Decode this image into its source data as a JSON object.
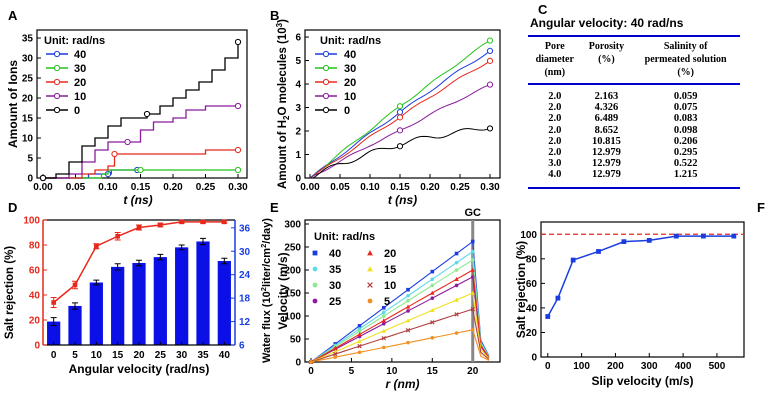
{
  "panels": {
    "A": "A",
    "B": "B",
    "C": "C",
    "D": "D",
    "E": "E",
    "F": "F"
  },
  "chart_data": [
    {
      "panel": "A",
      "type": "line",
      "title": "",
      "xlabel": "t (ns)",
      "ylabel": "Amount of Ions",
      "xlim": [
        0,
        0.3
      ],
      "ylim": [
        0,
        37
      ],
      "xticks": [
        "0.00",
        "0.05",
        "0.10",
        "0.15",
        "0.20",
        "0.25",
        "0.30"
      ],
      "yticks": [
        "0",
        "5",
        "10",
        "15",
        "20",
        "25",
        "30",
        "35"
      ],
      "legend_title": "Unit: rad/ns",
      "legend_position": "top-left",
      "series": [
        {
          "name": "40",
          "color": "#1a3de0",
          "x": [
            0,
            0.06,
            0.07,
            0.1,
            0.105,
            0.145
          ],
          "y": [
            0,
            0,
            1,
            1,
            2,
            2
          ]
        },
        {
          "name": "30",
          "color": "#22c41a",
          "x": [
            0,
            0.06,
            0.09,
            0.1,
            0.15,
            0.2,
            0.25,
            0.3
          ],
          "y": [
            0,
            0,
            1,
            2,
            2,
            2,
            2,
            2
          ]
        },
        {
          "name": "20",
          "color": "#e8281c",
          "x": [
            0,
            0.05,
            0.06,
            0.08,
            0.1,
            0.11,
            0.14,
            0.2,
            0.25,
            0.3
          ],
          "y": [
            0,
            0,
            1,
            2,
            3,
            6,
            6,
            6,
            7,
            7
          ]
        },
        {
          "name": "10",
          "color": "#8b1a9c",
          "x": [
            0,
            0.03,
            0.04,
            0.06,
            0.08,
            0.1,
            0.13,
            0.15,
            0.17,
            0.2,
            0.22,
            0.25,
            0.3
          ],
          "y": [
            0,
            0,
            1,
            4,
            7,
            9,
            9,
            12,
            14,
            15,
            17,
            18,
            18
          ]
        },
        {
          "name": "0",
          "color": "#000000",
          "x": [
            0,
            0.02,
            0.04,
            0.06,
            0.08,
            0.1,
            0.12,
            0.14,
            0.16,
            0.18,
            0.2,
            0.22,
            0.24,
            0.26,
            0.28,
            0.3
          ],
          "y": [
            0,
            1,
            4,
            8,
            10,
            13,
            15,
            15,
            16,
            18,
            20,
            22,
            24,
            27,
            30,
            34
          ]
        }
      ]
    },
    {
      "panel": "B",
      "type": "line",
      "xlabel": "t (ns)",
      "ylabel": "Amount of H2O molecules (10^3)",
      "ylabel_parts": {
        "pre": "Amount of H",
        "sub": "2",
        "mid": "O molecules (10",
        "sup": "3",
        "post": ")"
      },
      "xlim": [
        0,
        0.3
      ],
      "ylim": [
        0,
        6.3
      ],
      "xticks": [
        "0.00",
        "0.05",
        "0.10",
        "0.15",
        "0.20",
        "0.25",
        "0.30"
      ],
      "yticks": [
        "0",
        "1",
        "2",
        "3",
        "4",
        "5",
        "6"
      ],
      "legend_title": "Unit: rad/ns",
      "legend_position": "top-left",
      "series": [
        {
          "name": "40",
          "color": "#1a3de0",
          "x": [
            0,
            0.05,
            0.1,
            0.15,
            0.2,
            0.25,
            0.3
          ],
          "y": [
            0,
            0.95,
            1.9,
            2.8,
            3.7,
            4.6,
            5.4
          ]
        },
        {
          "name": "30",
          "color": "#22c41a",
          "x": [
            0,
            0.05,
            0.1,
            0.15,
            0.2,
            0.25,
            0.3
          ],
          "y": [
            0,
            1.05,
            2.05,
            3.05,
            4.0,
            4.95,
            5.85
          ]
        },
        {
          "name": "20",
          "color": "#e8281c",
          "x": [
            0,
            0.05,
            0.1,
            0.15,
            0.2,
            0.25,
            0.3
          ],
          "y": [
            0,
            0.85,
            1.75,
            2.6,
            3.45,
            4.25,
            5.0
          ]
        },
        {
          "name": "10",
          "color": "#8b1a9c",
          "x": [
            0,
            0.05,
            0.1,
            0.15,
            0.2,
            0.25,
            0.3
          ],
          "y": [
            0,
            0.7,
            1.4,
            2.0,
            2.7,
            3.35,
            3.95
          ]
        },
        {
          "name": "0",
          "color": "#000000",
          "x": [
            0,
            0.05,
            0.1,
            0.15,
            0.2,
            0.25,
            0.3
          ],
          "y": [
            0,
            0.6,
            1.05,
            1.45,
            1.75,
            1.95,
            2.2
          ]
        }
      ]
    },
    {
      "panel": "C",
      "type": "table",
      "title": "Angular velocity: 40 rad/ns",
      "columns": [
        [
          "Pore",
          "diameter",
          "(nm)"
        ],
        [
          "Porosity",
          "(%)"
        ],
        [
          "Salinity of",
          "permeated solution",
          "(%)"
        ]
      ],
      "rows": [
        [
          "2.0",
          "2.163",
          "0.059"
        ],
        [
          "2.0",
          "4.326",
          "0.075"
        ],
        [
          "2.0",
          "6.489",
          "0.083"
        ],
        [
          "2.0",
          "8.652",
          "0.098"
        ],
        [
          "2.0",
          "10.815",
          "0.206"
        ],
        [
          "2.0",
          "12.979",
          "0.295"
        ],
        [
          "3.0",
          "12.979",
          "0.522"
        ],
        [
          "4.0",
          "12.979",
          "1.215"
        ]
      ]
    },
    {
      "panel": "D",
      "type": "bar",
      "xlabel": "Angular velocity (rad/ns)",
      "ylabel_left": "Salt rejection (%)",
      "ylabel_right": "Water flux (10^2 liter/cm^2/day)",
      "ylabel_right_parts": {
        "pre": "Water flux (10",
        "sup1": "2",
        "mid": "liter/cm",
        "sup2": "2",
        "post": "/day)"
      },
      "categories": [
        "0",
        "5",
        "10",
        "15",
        "20",
        "25",
        "30",
        "35",
        "40"
      ],
      "ylim_left": [
        0,
        100
      ],
      "yticks_left": [
        "0",
        "20",
        "40",
        "60",
        "80",
        "100"
      ],
      "ylim_right": [
        6,
        38
      ],
      "yticks_right": [
        "6",
        "12",
        "18",
        "24",
        "30",
        "36"
      ],
      "series": [
        {
          "name": "Salt rejection",
          "type": "line",
          "axis": "left",
          "color": "#e8281c",
          "values": [
            34,
            48,
            79,
            87,
            94,
            96,
            98.5,
            98.5,
            98.5
          ],
          "errors": [
            4,
            3,
            2,
            3,
            2,
            1.5,
            1,
            1,
            1
          ]
        },
        {
          "name": "Water flux",
          "type": "bar",
          "axis": "right",
          "color": "#0a10e6",
          "values": [
            12,
            16,
            22,
            26,
            27,
            28.5,
            31,
            32.5,
            27.5
          ],
          "errors": [
            1,
            0.8,
            0.6,
            0.8,
            0.7,
            0.7,
            0.6,
            0.8,
            0.7
          ]
        }
      ]
    },
    {
      "panel": "E",
      "type": "line",
      "xlabel": "r (nm)",
      "ylabel": "Velocity (m/s)",
      "annotation": "GC",
      "xlim": [
        0,
        23
      ],
      "ylim": [
        0,
        300
      ],
      "xticks": [
        "0",
        "5",
        "10",
        "15",
        "20"
      ],
      "yticks": [
        "0",
        "50",
        "100",
        "150",
        "200",
        "250",
        "300"
      ],
      "legend_title": "Unit: rad/ns",
      "legend_position": "top-left",
      "series": [
        {
          "name": "40",
          "color": "#1a3de0",
          "marker": "square",
          "vmax": 262
        },
        {
          "name": "35",
          "color": "#5fd8e8",
          "marker": "circle",
          "vmax": 240
        },
        {
          "name": "30",
          "color": "#90e890",
          "marker": "circle",
          "vmax": 222
        },
        {
          "name": "25",
          "color": "#8b1a9c",
          "marker": "circle",
          "vmax": 185
        },
        {
          "name": "20",
          "color": "#e8281c",
          "marker": "triangle",
          "vmax": 200
        },
        {
          "name": "15",
          "color": "#f0e020",
          "marker": "triangle",
          "vmax": 150
        },
        {
          "name": "10",
          "color": "#b04040",
          "marker": "x",
          "vmax": 115
        },
        {
          "name": "5",
          "color": "#f09020",
          "marker": "circle",
          "vmax": 70
        }
      ]
    },
    {
      "panel": "F",
      "type": "line",
      "xlabel": "Slip velocity (m/s)",
      "ylabel": "Salt rejection (%)",
      "xlim": [
        -20,
        580
      ],
      "ylim": [
        0,
        110
      ],
      "xticks": [
        "0",
        "100",
        "200",
        "300",
        "400",
        "500"
      ],
      "yticks": [
        "0",
        "20",
        "40",
        "60",
        "80",
        "100"
      ],
      "reference_line": {
        "y": 100,
        "color": "#e8281c",
        "style": "dashed"
      },
      "series": [
        {
          "name": "Salt rejection",
          "color": "#1a3de0",
          "x": [
            0,
            30,
            75,
            150,
            225,
            300,
            380,
            460,
            550
          ],
          "y": [
            33,
            48,
            79,
            86,
            94,
            95,
            98.5,
            98.5,
            98.5
          ]
        }
      ]
    }
  ]
}
